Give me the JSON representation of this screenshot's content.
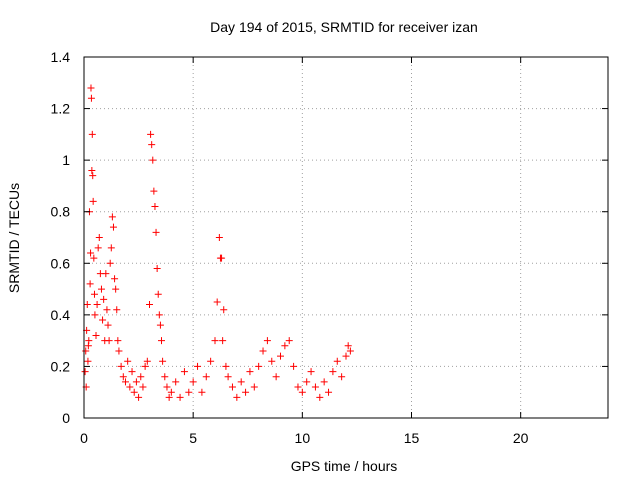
{
  "chart_data": {
    "type": "scatter",
    "title": "Day 194 of 2015, SRMTID for receiver izan",
    "xlabel": "GPS time / hours",
    "ylabel": "SRMTID / TECUs",
    "xlim": [
      0,
      24
    ],
    "ylim": [
      0,
      1.4
    ],
    "xticks": [
      0,
      5,
      10,
      15,
      20
    ],
    "xtick_labels": [
      "0",
      "5",
      "10",
      "15",
      "20"
    ],
    "yticks": [
      0,
      0.2,
      0.4,
      0.6,
      0.8,
      1.0,
      1.2,
      1.4
    ],
    "ytick_labels": [
      "0",
      "0.2",
      "0.4",
      "0.6",
      "0.8",
      "1",
      "1.2",
      "1.4"
    ],
    "grid": true,
    "marker": "plus",
    "series": [
      {
        "name": "SRMTID",
        "color": "#ff0000",
        "points": [
          [
            0.05,
            0.18
          ],
          [
            0.08,
            0.26
          ],
          [
            0.1,
            0.12
          ],
          [
            0.12,
            0.34
          ],
          [
            0.15,
            0.44
          ],
          [
            0.18,
            0.22
          ],
          [
            0.2,
            0.28
          ],
          [
            0.22,
            0.3
          ],
          [
            0.25,
            0.8
          ],
          [
            0.28,
            0.52
          ],
          [
            0.3,
            0.64
          ],
          [
            0.32,
            1.28
          ],
          [
            0.34,
            1.24
          ],
          [
            0.36,
            0.96
          ],
          [
            0.38,
            1.1
          ],
          [
            0.4,
            0.94
          ],
          [
            0.42,
            0.84
          ],
          [
            0.45,
            0.62
          ],
          [
            0.48,
            0.48
          ],
          [
            0.5,
            0.4
          ],
          [
            0.55,
            0.32
          ],
          [
            0.6,
            0.44
          ],
          [
            0.65,
            0.66
          ],
          [
            0.7,
            0.7
          ],
          [
            0.75,
            0.56
          ],
          [
            0.8,
            0.5
          ],
          [
            0.85,
            0.38
          ],
          [
            0.9,
            0.46
          ],
          [
            0.95,
            0.3
          ],
          [
            1.0,
            0.56
          ],
          [
            1.05,
            0.42
          ],
          [
            1.1,
            0.36
          ],
          [
            1.15,
            0.3
          ],
          [
            1.2,
            0.6
          ],
          [
            1.25,
            0.66
          ],
          [
            1.3,
            0.78
          ],
          [
            1.35,
            0.74
          ],
          [
            1.4,
            0.54
          ],
          [
            1.45,
            0.5
          ],
          [
            1.5,
            0.42
          ],
          [
            1.55,
            0.3
          ],
          [
            1.6,
            0.26
          ],
          [
            1.7,
            0.2
          ],
          [
            1.8,
            0.16
          ],
          [
            1.9,
            0.14
          ],
          [
            2.0,
            0.22
          ],
          [
            2.1,
            0.12
          ],
          [
            2.2,
            0.18
          ],
          [
            2.3,
            0.1
          ],
          [
            2.4,
            0.14
          ],
          [
            2.5,
            0.08
          ],
          [
            2.6,
            0.16
          ],
          [
            2.7,
            0.12
          ],
          [
            2.8,
            0.2
          ],
          [
            2.9,
            0.22
          ],
          [
            3.0,
            0.44
          ],
          [
            3.05,
            1.1
          ],
          [
            3.1,
            1.06
          ],
          [
            3.15,
            1.0
          ],
          [
            3.2,
            0.88
          ],
          [
            3.25,
            0.82
          ],
          [
            3.3,
            0.72
          ],
          [
            3.35,
            0.58
          ],
          [
            3.4,
            0.48
          ],
          [
            3.45,
            0.4
          ],
          [
            3.5,
            0.36
          ],
          [
            3.55,
            0.3
          ],
          [
            3.6,
            0.22
          ],
          [
            3.7,
            0.16
          ],
          [
            3.8,
            0.12
          ],
          [
            3.9,
            0.08
          ],
          [
            4.0,
            0.1
          ],
          [
            4.2,
            0.14
          ],
          [
            4.4,
            0.08
          ],
          [
            4.6,
            0.18
          ],
          [
            4.8,
            0.1
          ],
          [
            5.0,
            0.14
          ],
          [
            5.2,
            0.2
          ],
          [
            5.4,
            0.1
          ],
          [
            5.6,
            0.16
          ],
          [
            5.8,
            0.22
          ],
          [
            6.0,
            0.3
          ],
          [
            6.1,
            0.45
          ],
          [
            6.2,
            0.7
          ],
          [
            6.25,
            0.62
          ],
          [
            6.3,
            0.62
          ],
          [
            6.35,
            0.3
          ],
          [
            6.4,
            0.42
          ],
          [
            6.5,
            0.2
          ],
          [
            6.6,
            0.16
          ],
          [
            6.8,
            0.12
          ],
          [
            7.0,
            0.08
          ],
          [
            7.2,
            0.14
          ],
          [
            7.4,
            0.1
          ],
          [
            7.6,
            0.18
          ],
          [
            7.8,
            0.12
          ],
          [
            8.0,
            0.2
          ],
          [
            8.2,
            0.26
          ],
          [
            8.4,
            0.3
          ],
          [
            8.6,
            0.22
          ],
          [
            8.8,
            0.16
          ],
          [
            9.0,
            0.24
          ],
          [
            9.2,
            0.28
          ],
          [
            9.4,
            0.3
          ],
          [
            9.6,
            0.2
          ],
          [
            9.8,
            0.12
          ],
          [
            10.0,
            0.1
          ],
          [
            10.2,
            0.14
          ],
          [
            10.4,
            0.18
          ],
          [
            10.6,
            0.12
          ],
          [
            10.8,
            0.08
          ],
          [
            11.0,
            0.14
          ],
          [
            11.2,
            0.1
          ],
          [
            11.4,
            0.18
          ],
          [
            11.6,
            0.22
          ],
          [
            11.8,
            0.16
          ],
          [
            12.0,
            0.24
          ],
          [
            12.1,
            0.28
          ],
          [
            12.2,
            0.26
          ]
        ]
      }
    ]
  }
}
